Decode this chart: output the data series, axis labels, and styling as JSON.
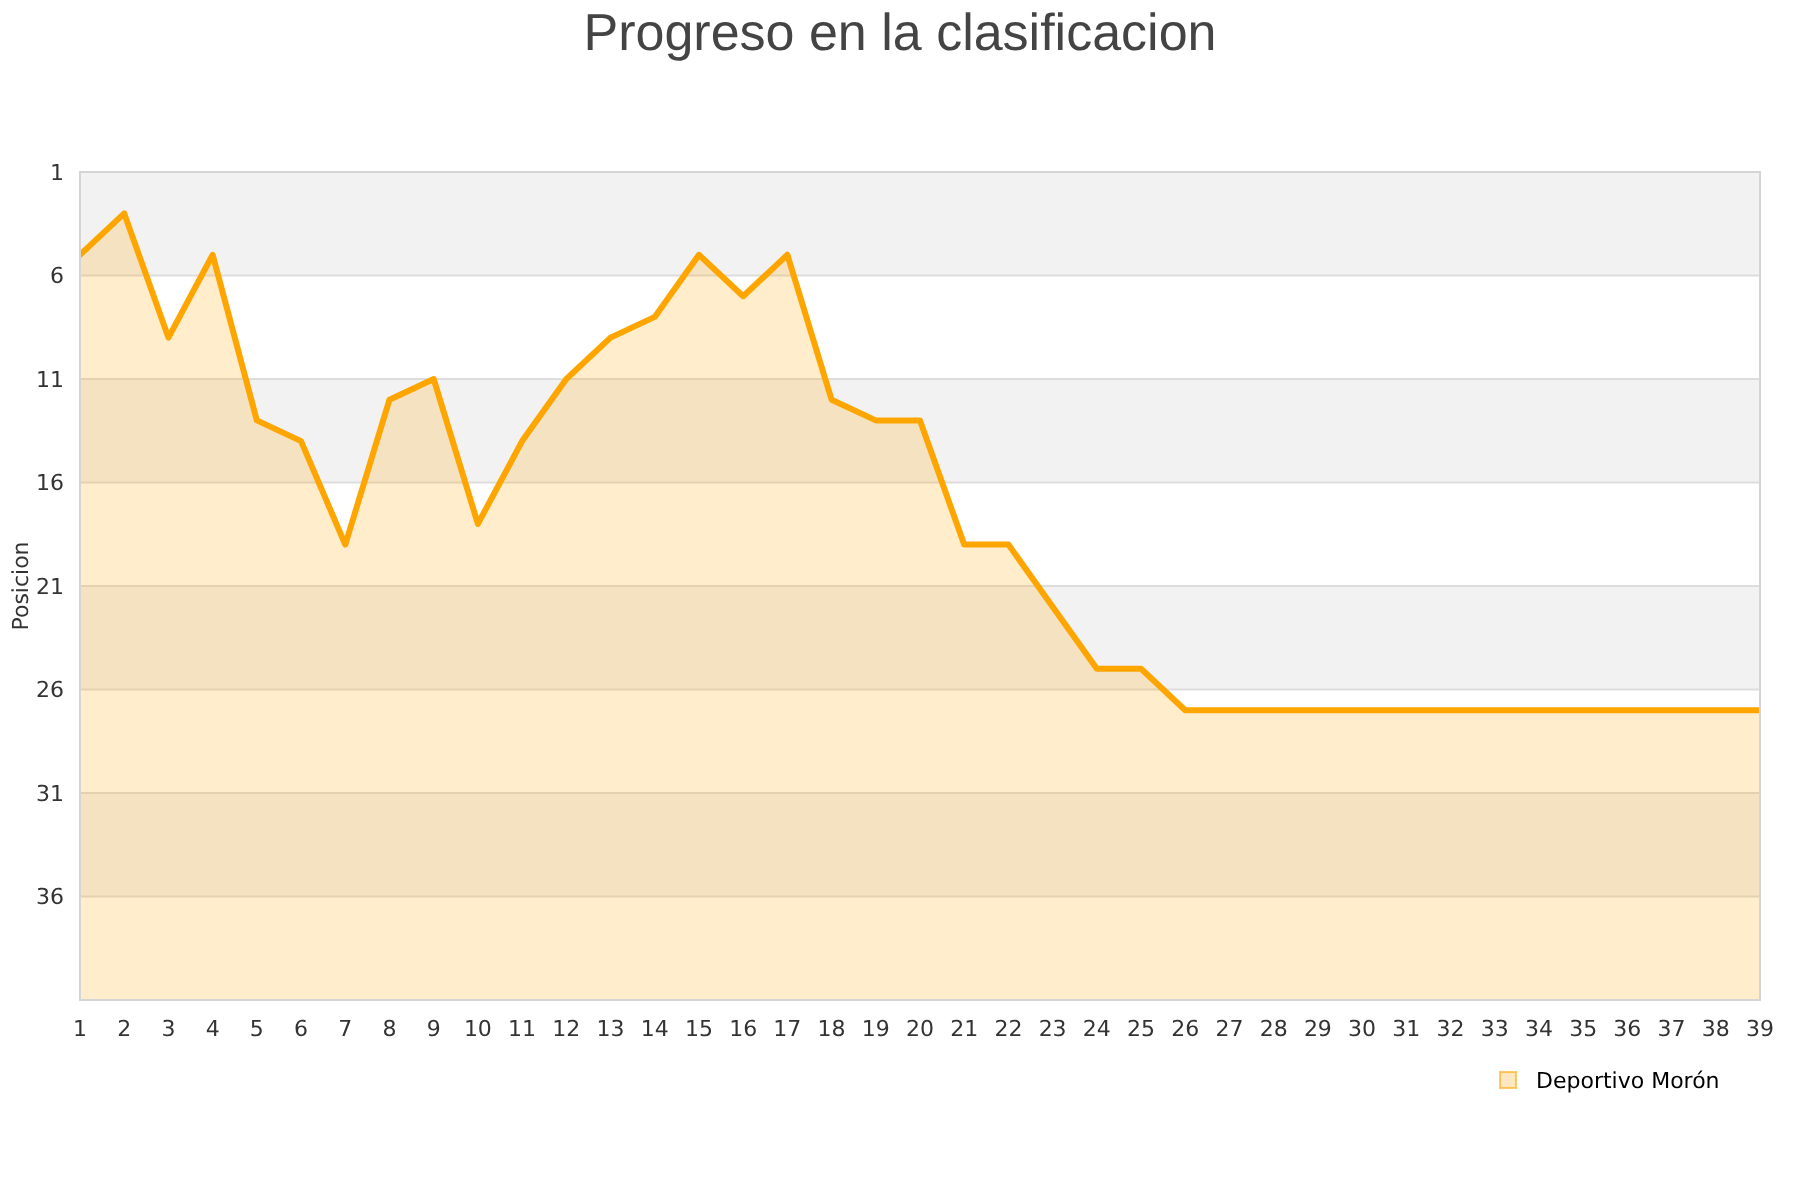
{
  "chart_data": {
    "type": "area",
    "title": "Progreso en la clasificacion",
    "ylabel": "Posicion",
    "x": [
      1,
      2,
      3,
      4,
      5,
      6,
      7,
      8,
      9,
      10,
      11,
      12,
      13,
      14,
      15,
      16,
      17,
      18,
      19,
      20,
      21,
      22,
      23,
      24,
      25,
      26,
      27,
      28,
      29,
      30,
      31,
      32,
      33,
      34,
      35,
      36,
      37,
      38,
      39
    ],
    "series": [
      {
        "name": "Deportivo Morón",
        "color": "#ffa500",
        "values": [
          5,
          3,
          9,
          5,
          13,
          14,
          19,
          12,
          11,
          18,
          14,
          11,
          9,
          8,
          5,
          7,
          5,
          12,
          13,
          13,
          19,
          19,
          22,
          25,
          25,
          27,
          27,
          27,
          27,
          27,
          27,
          27,
          27,
          27,
          27,
          27,
          27,
          27,
          27
        ]
      }
    ],
    "xlim": [
      1,
      39
    ],
    "xticks": [
      1,
      2,
      3,
      4,
      5,
      6,
      7,
      8,
      9,
      10,
      11,
      12,
      13,
      14,
      15,
      16,
      17,
      18,
      19,
      20,
      21,
      22,
      23,
      24,
      25,
      26,
      27,
      28,
      29,
      30,
      31,
      32,
      33,
      34,
      35,
      36,
      37,
      38,
      39
    ],
    "ylim": [
      41,
      1
    ],
    "yticks": [
      1,
      6,
      11,
      16,
      21,
      26,
      31,
      36
    ],
    "grid": "y",
    "legend": "bottom right"
  }
}
